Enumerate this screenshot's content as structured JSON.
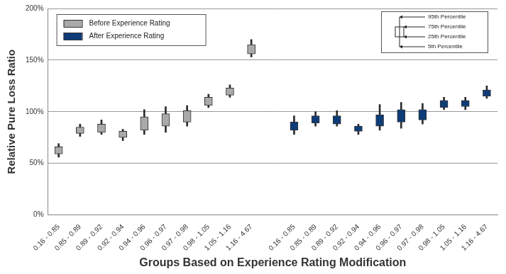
{
  "chart_data": {
    "type": "box",
    "x_label": "Groups Based on Experience Rating Modification",
    "y_label": "Relative Pure Loss Ratio",
    "categories": [
      "0.16 - 0.85",
      "0.85 - 0.89",
      "0.89 - 0.92",
      "0.92 - 0.94",
      "0.94 - 0.96",
      "0.96 - 0.97",
      "0.97 - 0.98",
      "0.98 - 1.05",
      "1.05 - 1.16",
      "1.16 - 4.67",
      null,
      "0.16 - 0.85",
      "0.85 - 0.89",
      "0.89 - 0.92",
      "0.92 - 0.94",
      "0.94 - 0.96",
      "0.96 - 0.97",
      "0.97 - 0.98",
      "0.98 - 1.05",
      "1.05 - 1.16",
      "1.16 - 4.67"
    ],
    "series": [
      {
        "name": "Before Experience Rating",
        "color": "#a9a9a9",
        "p5": [
          56,
          76,
          78,
          72,
          78,
          80,
          86,
          104,
          114,
          153,
          null,
          null,
          null,
          null,
          null,
          null,
          null,
          null,
          null,
          null,
          null
        ],
        "p25": [
          59,
          79,
          80,
          75,
          82,
          86,
          90,
          106,
          116,
          156,
          null,
          null,
          null,
          null,
          null,
          null,
          null,
          null,
          null,
          null,
          null
        ],
        "p75": [
          66,
          85,
          88,
          81,
          95,
          98,
          101,
          114,
          123,
          165,
          null,
          null,
          null,
          null,
          null,
          null,
          null,
          null,
          null,
          null,
          null
        ],
        "p95": [
          69,
          88,
          92,
          83,
          102,
          105,
          106,
          117,
          126,
          170,
          null,
          null,
          null,
          null,
          null,
          null,
          null,
          null,
          null,
          null,
          null
        ]
      },
      {
        "name": "After Experience Rating",
        "color": "#0e3c78",
        "p5": [
          null,
          null,
          null,
          null,
          null,
          null,
          null,
          null,
          null,
          null,
          null,
          78,
          86,
          86,
          78,
          82,
          84,
          88,
          102,
          102,
          113
        ],
        "p25": [
          null,
          null,
          null,
          null,
          null,
          null,
          null,
          null,
          null,
          null,
          null,
          82,
          89,
          88,
          81,
          86,
          90,
          92,
          104,
          105,
          115
        ],
        "p75": [
          null,
          null,
          null,
          null,
          null,
          null,
          null,
          null,
          null,
          null,
          null,
          90,
          96,
          96,
          86,
          97,
          102,
          102,
          111,
          111,
          121
        ],
        "p95": [
          null,
          null,
          null,
          null,
          null,
          null,
          null,
          null,
          null,
          null,
          null,
          96,
          100,
          101,
          88,
          107,
          109,
          108,
          114,
          114,
          125
        ]
      }
    ],
    "ylim": [
      0,
      200
    ],
    "yticks": [
      {
        "value": 0,
        "label": "0%"
      },
      {
        "value": 50,
        "label": "50%"
      },
      {
        "value": 100,
        "label": "100%"
      },
      {
        "value": 150,
        "label": "150%"
      },
      {
        "value": 200,
        "label": "200%"
      }
    ],
    "grid": true,
    "legend": "upper left",
    "annotations": [
      "95th Percentile",
      "75th Percentile",
      "25th Percentile",
      "5th Percentile"
    ]
  }
}
